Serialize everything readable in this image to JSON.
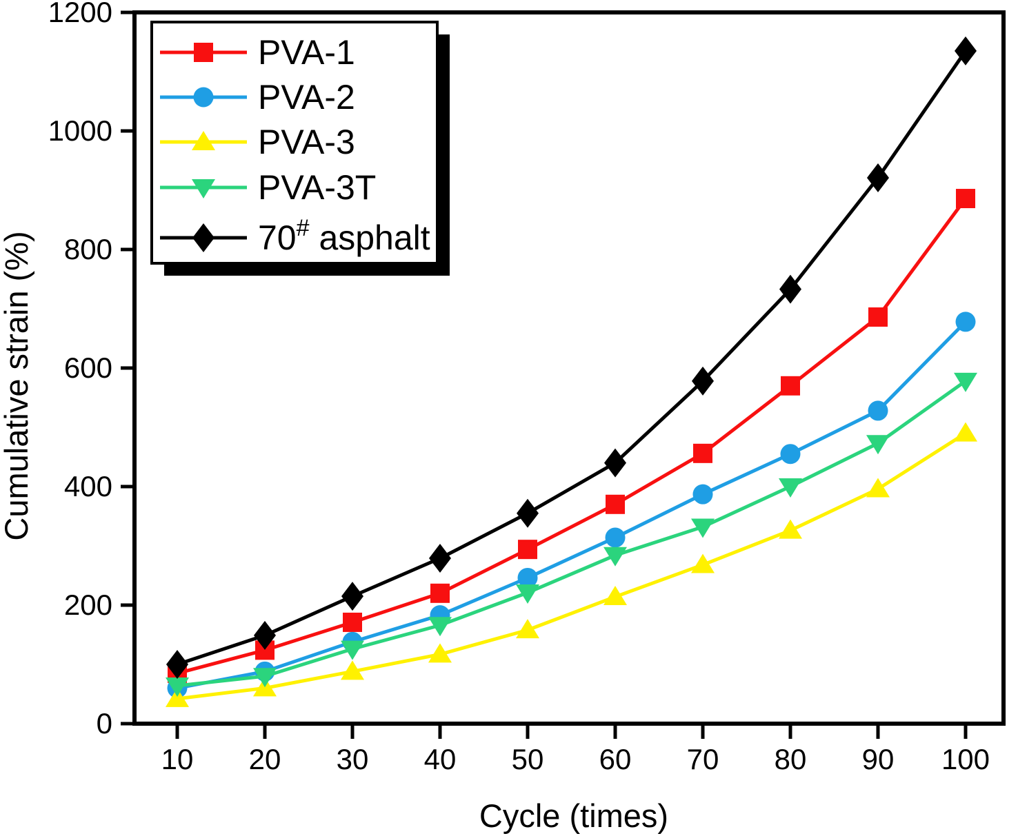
{
  "figure": {
    "x_axis": {
      "label": "Cycle (times)",
      "ticks": [
        "10",
        "20",
        "30",
        "40",
        "50",
        "60",
        "70",
        "80",
        "90",
        "100"
      ]
    },
    "y_axis": {
      "label": "Cumulative strain (%)",
      "ticks": [
        "0",
        "200",
        "400",
        "600",
        "800",
        "1000",
        "1200"
      ]
    },
    "frame_color": "#000000",
    "background": "#ffffff"
  },
  "legend": {
    "position": "top-left",
    "border_color": "#000000",
    "shadow_color": "#000000",
    "fill": "#ffffff"
  },
  "chart_data": {
    "type": "line",
    "title": "",
    "xlabel": "Cycle (times)",
    "ylabel": "Cumulative strain (%)",
    "xlim": [
      5,
      105
    ],
    "ylim": [
      0,
      1200
    ],
    "x_ticks": [
      10,
      20,
      30,
      40,
      50,
      60,
      70,
      80,
      90,
      100
    ],
    "y_ticks": [
      0,
      200,
      400,
      600,
      800,
      1000,
      1200
    ],
    "grid": false,
    "legend_position": "top-left",
    "x": [
      10,
      20,
      30,
      40,
      50,
      60,
      70,
      80,
      90,
      100
    ],
    "series": [
      {
        "name": "PVA-1",
        "name_parts": [
          {
            "t": "PVA-1"
          }
        ],
        "marker": "square",
        "color": "#F81010",
        "values": [
          85,
          124,
          171,
          220,
          294,
          370,
          456,
          570,
          686,
          886
        ]
      },
      {
        "name": "PVA-2",
        "name_parts": [
          {
            "t": "PVA-2"
          }
        ],
        "marker": "circle",
        "color": "#1F9EE4",
        "values": [
          60,
          88,
          138,
          183,
          246,
          314,
          387,
          455,
          528,
          678
        ]
      },
      {
        "name": "PVA-3",
        "name_parts": [
          {
            "t": "PVA-3"
          }
        ],
        "marker": "triangle-up",
        "color": "#FFF100",
        "values": [
          42,
          60,
          88,
          117,
          158,
          214,
          268,
          326,
          396,
          490
        ]
      },
      {
        "name": "PVA-3T",
        "name_parts": [
          {
            "t": "PVA-3T"
          }
        ],
        "marker": "triangle-down",
        "color": "#2BD47D",
        "values": [
          64,
          80,
          126,
          166,
          221,
          284,
          332,
          400,
          473,
          578
        ]
      },
      {
        "name": "70# asphalt",
        "name_parts": [
          {
            "t": "70"
          },
          {
            "t": "#",
            "sup": true
          },
          {
            "t": " asphalt"
          }
        ],
        "marker": "diamond",
        "color": "#000000",
        "values": [
          100,
          149,
          215,
          279,
          355,
          440,
          578,
          733,
          921,
          1135
        ]
      }
    ],
    "draw_order": [
      0,
      1,
      2,
      3,
      4
    ]
  }
}
